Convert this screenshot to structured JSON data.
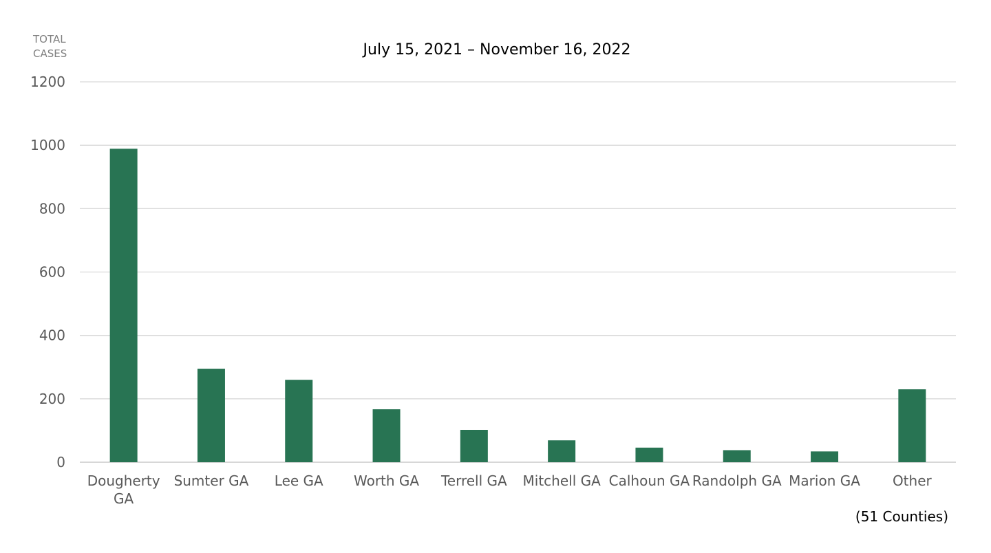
{
  "chart_data": {
    "type": "bar",
    "title": "July 15, 2021 – November 16, 2022",
    "ylabel_lines": [
      "TOTAL",
      "CASES"
    ],
    "xlabel": "",
    "categories": [
      [
        "Dougherty",
        "GA"
      ],
      [
        "Sumter GA"
      ],
      [
        "Lee GA"
      ],
      [
        "Worth GA"
      ],
      [
        "Terrell GA"
      ],
      [
        "Mitchell GA"
      ],
      [
        "Calhoun GA"
      ],
      [
        "Randolph GA"
      ],
      [
        "Marion GA"
      ],
      [
        "Other"
      ]
    ],
    "values": [
      989,
      295,
      260,
      167,
      102,
      69,
      46,
      38,
      34,
      230
    ],
    "ylim": [
      0,
      1200
    ],
    "yticks": [
      0,
      200,
      400,
      600,
      800,
      1000,
      1200
    ],
    "grid": true,
    "legend": "none",
    "annotation": "(51 Counties)",
    "colors": {
      "bar": "#287453",
      "grid": "#d9d9d9",
      "axis": "#bfbfbf",
      "tick_text": "#595959",
      "axis_title_text": "#808080",
      "title_text": "#000000",
      "annotation_text": "#000000"
    }
  }
}
